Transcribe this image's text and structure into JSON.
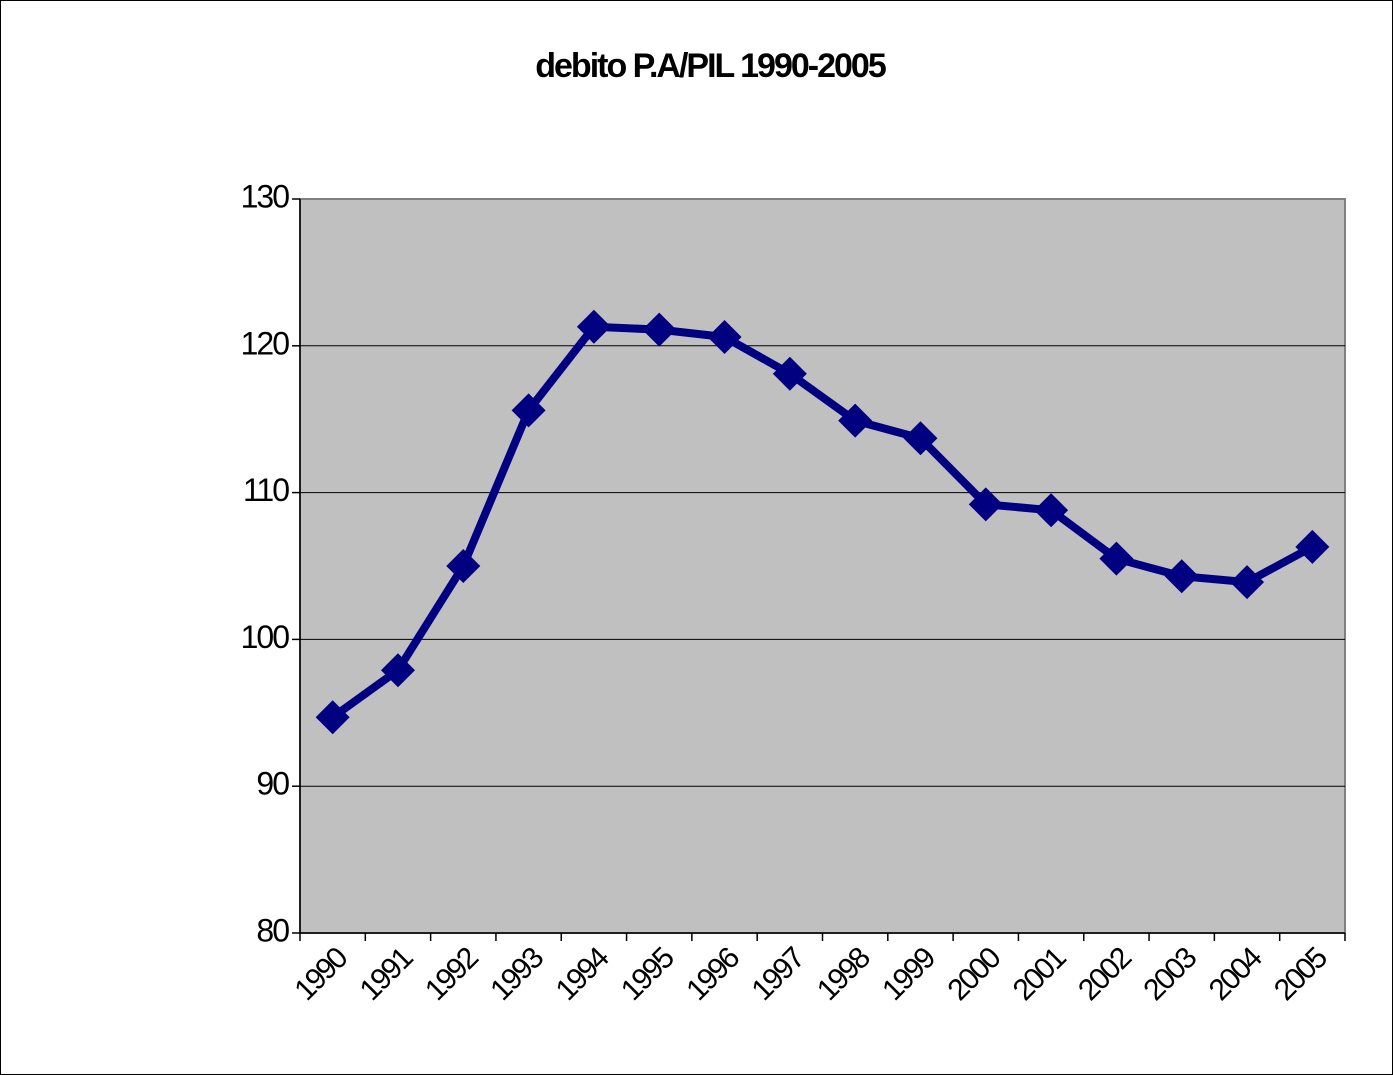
{
  "chart_data": {
    "type": "line",
    "title": "debito P.A/PIL 1990-2005",
    "categories": [
      "1990",
      "1991",
      "1992",
      "1993",
      "1994",
      "1995",
      "1996",
      "1997",
      "1998",
      "1999",
      "2000",
      "2001",
      "2002",
      "2003",
      "2004",
      "2005"
    ],
    "series": [
      {
        "name": "debito P.A/PIL",
        "color": "#000080",
        "values": [
          94.7,
          97.9,
          105.0,
          115.6,
          121.3,
          121.1,
          120.6,
          118.1,
          114.9,
          113.7,
          109.2,
          108.8,
          105.5,
          104.3,
          103.9,
          106.3
        ]
      }
    ],
    "ylim": [
      80,
      130
    ],
    "yticks": [
      80,
      90,
      100,
      110,
      120,
      130
    ],
    "grid": true
  }
}
